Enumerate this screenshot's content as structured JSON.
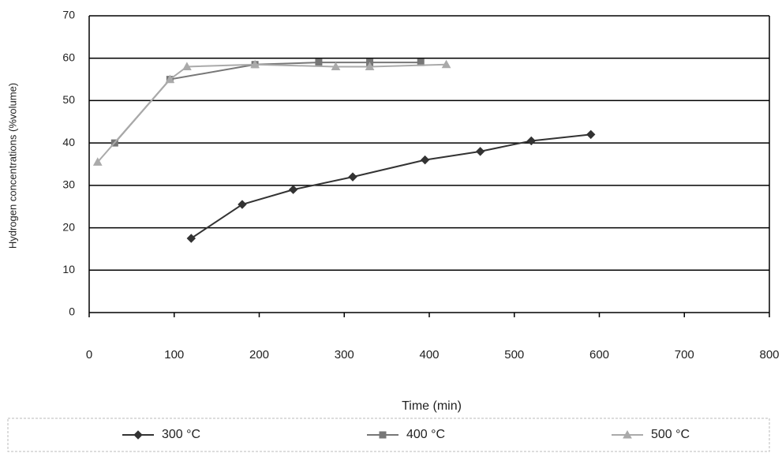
{
  "chart_data": {
    "type": "line",
    "x_label": "Time (min)",
    "y_label": "Hydrogen concentrations (%volume)",
    "xlim": [
      0,
      800
    ],
    "xticks": [
      0,
      100,
      200,
      300,
      400,
      500,
      600,
      700,
      800
    ],
    "ylim": [
      0,
      70
    ],
    "yticks": [
      0,
      10,
      20,
      30,
      40,
      50,
      60,
      70
    ],
    "grid": true,
    "legend": "bottom",
    "series": [
      {
        "name": "300 °C",
        "color": "#333333",
        "marker": "diamond",
        "x": [
          120,
          180,
          240,
          310,
          395,
          460,
          520,
          590
        ],
        "values": [
          17.5,
          25.5,
          29,
          32,
          36,
          38,
          40.5,
          42
        ]
      },
      {
        "name": "400 °C",
        "color": "#777777",
        "marker": "square",
        "x": [
          30,
          95,
          195,
          270,
          330,
          390
        ],
        "values": [
          40,
          55,
          58.5,
          59,
          59,
          59
        ]
      },
      {
        "name": "500 °C",
        "color": "#aaaaaa",
        "marker": "triangle",
        "x": [
          10,
          95,
          115,
          195,
          290,
          330,
          420
        ],
        "values": [
          35.5,
          55,
          58,
          58.5,
          58,
          58,
          58.5
        ]
      }
    ]
  }
}
